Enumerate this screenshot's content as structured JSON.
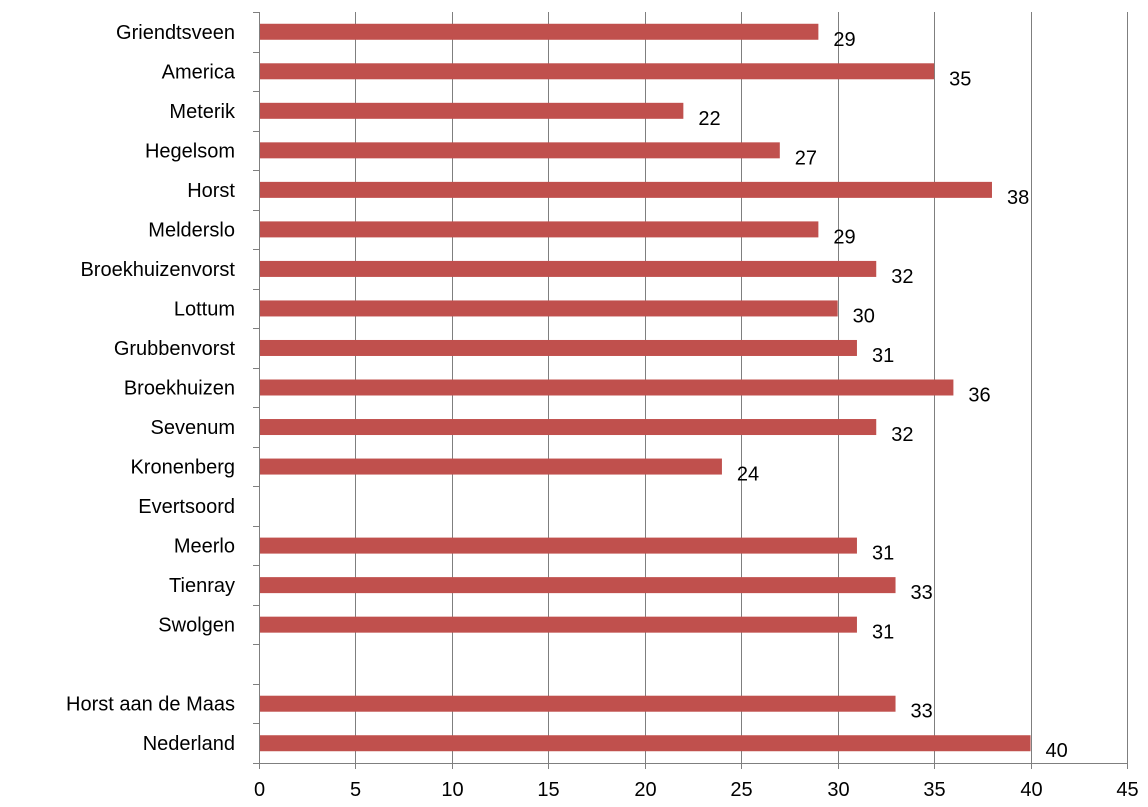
{
  "chart_data": {
    "type": "bar",
    "orientation": "horizontal",
    "categories": [
      "Griendtsveen",
      "America",
      "Meterik",
      "Hegelsom",
      "Horst",
      "Melderslo",
      "Broekhuizenvorst",
      "Lottum",
      "Grubbenvorst",
      "Broekhuizen",
      "Sevenum",
      "Kronenberg",
      "Evertsoord",
      "Meerlo",
      "Tienray",
      "Swolgen",
      "",
      "Horst aan de Maas",
      "Nederland"
    ],
    "values": [
      29,
      35,
      22,
      27,
      38,
      29,
      32,
      30,
      31,
      36,
      32,
      24,
      null,
      31,
      33,
      31,
      null,
      33,
      40
    ],
    "data_labels": [
      "29",
      "35",
      "22",
      "27",
      "38",
      "29",
      "32",
      "30",
      "31",
      "36",
      "32",
      "24",
      "",
      "31",
      "33",
      "31",
      "",
      "33",
      "40"
    ],
    "xlim": [
      0,
      45
    ],
    "x_ticks": [
      0,
      5,
      10,
      15,
      20,
      25,
      30,
      35,
      40,
      45
    ],
    "x_tick_labels": [
      "0",
      "5",
      "10",
      "15",
      "20",
      "25",
      "30",
      "35",
      "40",
      "45"
    ],
    "bar_color": "#c0504d",
    "grid": "vertical",
    "legend": "none"
  }
}
